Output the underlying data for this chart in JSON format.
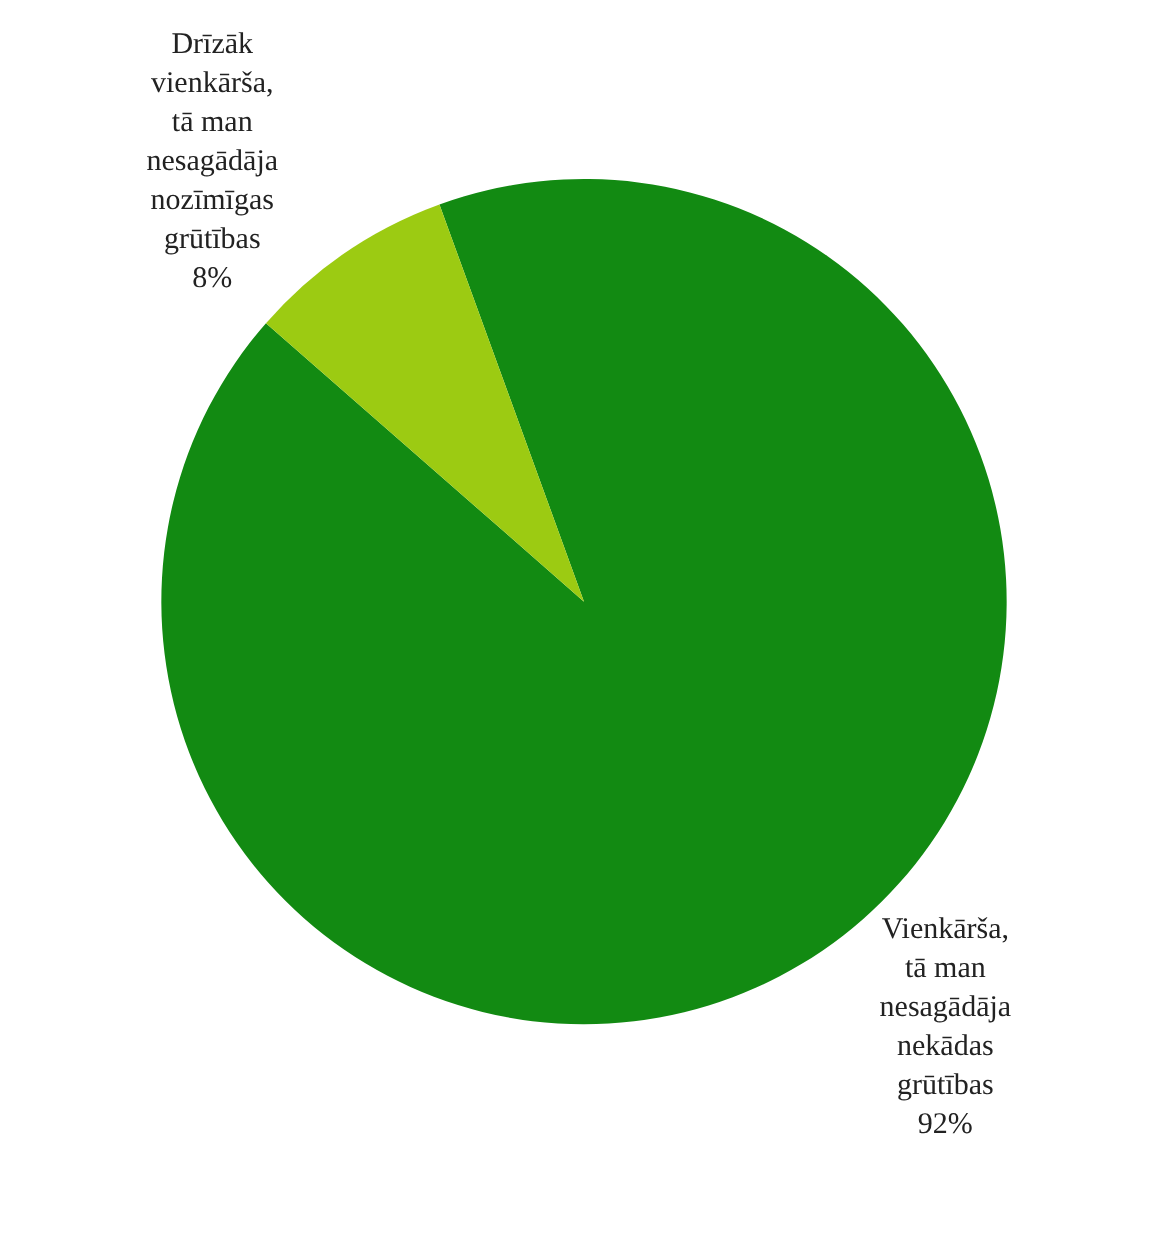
{
  "chart_data": {
    "type": "pie",
    "categories": [
      "Vienkārša, tā man nesagādāja nekādas grūtības",
      "Drīzāk vienkārša, tā man nesagādāja nozīmīgas grūtības"
    ],
    "values": [
      92,
      8
    ],
    "value_labels": [
      "92%",
      "8%"
    ],
    "colors": [
      "#128a12",
      "#9ccb12"
    ]
  }
}
